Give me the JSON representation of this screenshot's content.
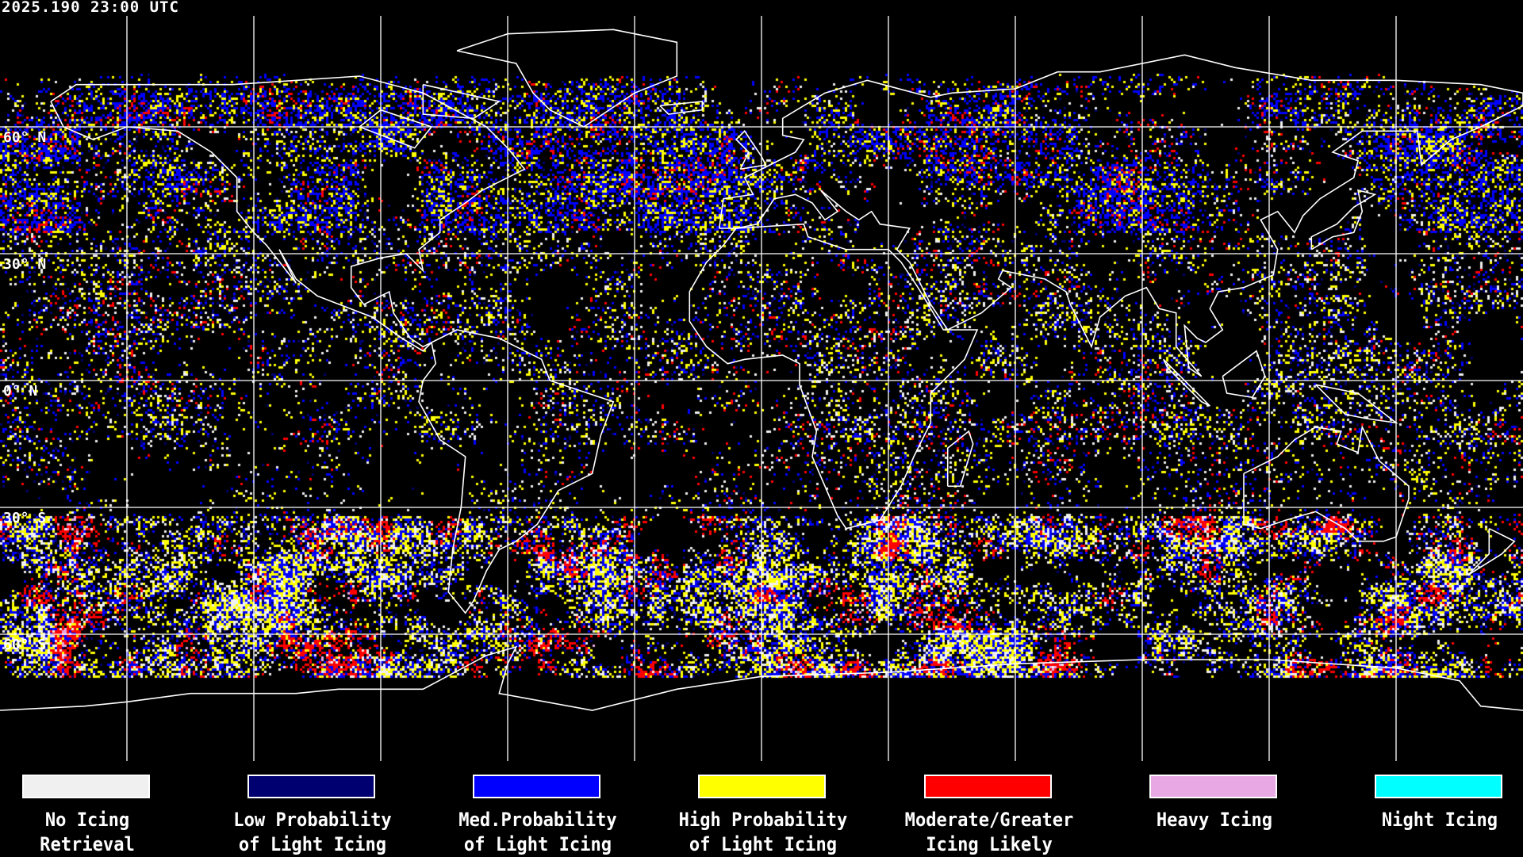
{
  "header": {
    "timestamp": "2025.190 23:00 UTC"
  },
  "map": {
    "projection": "equirectangular",
    "lat_labels": [
      "60° N",
      "30° N",
      "0° N",
      "30° S",
      "60° S"
    ],
    "grid_spacing_degrees": 30,
    "coastline_color": "#ffffff",
    "grid_color": "#ffffff",
    "background_color": "#000000"
  },
  "legend": [
    {
      "line1": "No Icing",
      "line2": "Retrieval",
      "color": "#f0f0f0"
    },
    {
      "line1": "Low Probability",
      "line2": "of Light Icing",
      "color": "#000070"
    },
    {
      "line1": "Med.Probability",
      "line2": "of Light Icing",
      "color": "#0000ff"
    },
    {
      "line1": "High Probability",
      "line2": "of Light Icing",
      "color": "#ffff00"
    },
    {
      "line1": "Moderate/Greater",
      "line2": "Icing Likely",
      "color": "#ff0000"
    },
    {
      "line1": "Heavy Icing",
      "line2": "",
      "color": "#e8a8e4"
    },
    {
      "line1": "Night Icing",
      "line2": "",
      "color": "#00ffff"
    }
  ]
}
